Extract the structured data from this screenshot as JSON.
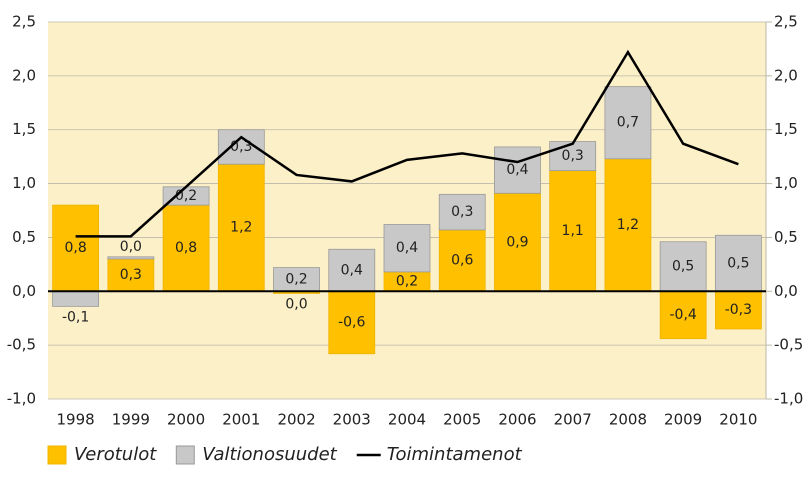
{
  "chart_data": {
    "type": "bar",
    "categories": [
      "1998",
      "1999",
      "2000",
      "2001",
      "2002",
      "2003",
      "2004",
      "2005",
      "2006",
      "2007",
      "2008",
      "2009",
      "2010"
    ],
    "series": [
      {
        "name": "Verotulot",
        "color": "#ffc000",
        "type": "bar",
        "values": [
          0.8,
          0.3,
          0.8,
          1.18,
          -0.02,
          -0.58,
          0.18,
          0.57,
          0.91,
          1.12,
          1.23,
          -0.44,
          -0.35
        ],
        "value_labels": [
          "0,8",
          "0,3",
          "0,8",
          "1,2",
          "0,0",
          "-0,6",
          "0,2",
          "0,6",
          "0,9",
          "1,1",
          "1,2",
          "-0,4",
          "-0,3"
        ]
      },
      {
        "name": "Valtionosuudet",
        "color": "#c8c8c8",
        "type": "bar",
        "values": [
          -0.14,
          0.02,
          0.17,
          0.32,
          0.22,
          0.39,
          0.44,
          0.33,
          0.43,
          0.27,
          0.67,
          0.46,
          0.52
        ],
        "value_labels": [
          "-0,1",
          "0,0",
          "0,2",
          "0,3",
          "0,2",
          "0,4",
          "0,4",
          "0,3",
          "0,4",
          "0,3",
          "0,7",
          "0,5",
          "0,5"
        ]
      },
      {
        "name": "Toimintamenot",
        "color": "#000000",
        "type": "line",
        "axis": "y2",
        "values": [
          0.51,
          0.51,
          0.97,
          1.43,
          1.08,
          1.02,
          1.22,
          1.28,
          1.2,
          1.37,
          2.22,
          1.37,
          1.18
        ]
      }
    ],
    "ylim": [
      -1.0,
      2.5
    ],
    "yticks": [
      {
        "value": 2.5,
        "label": "2,5"
      },
      {
        "value": 2.0,
        "label": "2,0"
      },
      {
        "value": 1.5,
        "label": "1,5"
      },
      {
        "value": 1.0,
        "label": "1,0"
      },
      {
        "value": 0.5,
        "label": "0,5"
      },
      {
        "value": 0.0,
        "label": "0,0"
      },
      {
        "value": -0.5,
        "label": "-0,5"
      },
      {
        "value": -1.0,
        "label": "-1,0"
      }
    ],
    "y2lim": [
      -1.0,
      2.5
    ],
    "y2ticks": [
      {
        "value": 2.5,
        "label": "2,5"
      },
      {
        "value": 2.0,
        "label": "2,0"
      },
      {
        "value": 1.5,
        "label": "1,5"
      },
      {
        "value": 1.0,
        "label": "1,0"
      },
      {
        "value": 0.5,
        "label": "0,5"
      },
      {
        "value": 0.0,
        "label": "0,0"
      },
      {
        "value": -0.5,
        "label": "-0,5"
      },
      {
        "value": -1.0,
        "label": "-1,0"
      }
    ],
    "grid": true,
    "legend": "bottom"
  }
}
